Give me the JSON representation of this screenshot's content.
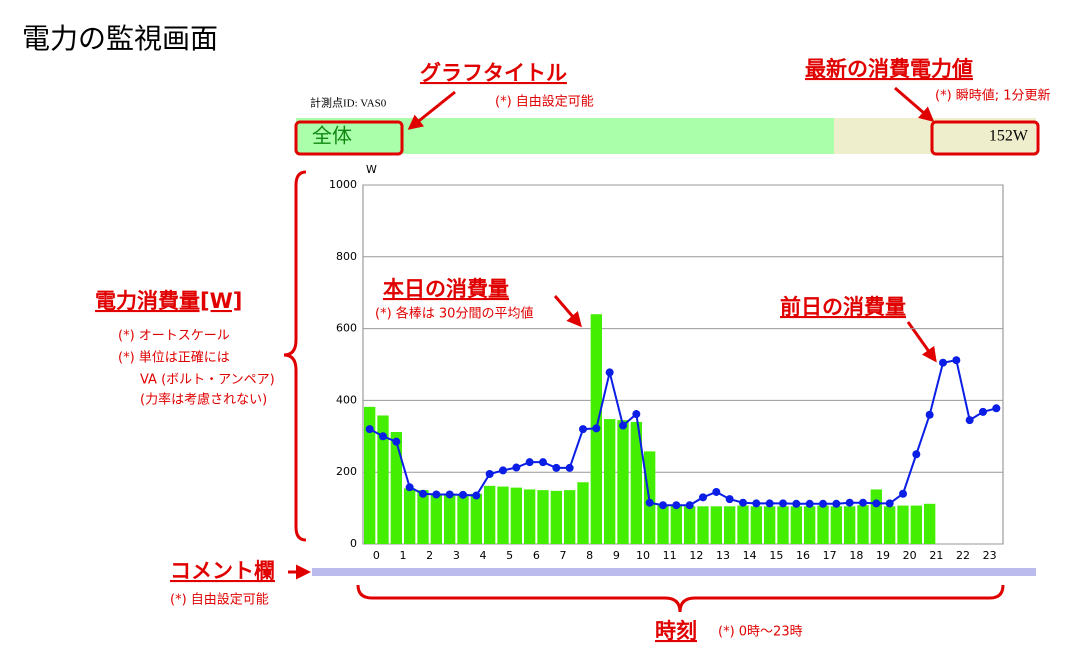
{
  "title": "電力の監視画面",
  "measure_id": "計測点ID: VAS0",
  "header": {
    "label": "全体",
    "value": "152W"
  },
  "annotations": {
    "graph_title": {
      "heading": "グラフタイトル",
      "note": "(*) 自由設定可能"
    },
    "latest": {
      "heading": "最新の消費電力値",
      "note": "(*) 瞬時値; 1分更新"
    },
    "consumption": {
      "heading": "電力消費量[W]",
      "notes": [
        "(*) オートスケール",
        "(*) 単位は正確には",
        "VA (ボルト・アンペア)",
        "(力率は考慮されない)"
      ]
    },
    "today": {
      "heading": "本日の消費量",
      "note": "(*) 各棒は 30分間の平均値"
    },
    "yesterday": {
      "heading": "前日の消費量"
    },
    "comment": {
      "heading": "コメント欄",
      "note": "(*) 自由設定可能"
    },
    "time": {
      "heading": "時刻",
      "note": "(*) 0時〜23時"
    }
  },
  "chart_data": {
    "type": "bar_line",
    "y_unit": "W",
    "categories": [
      "0",
      null,
      "1",
      null,
      "2",
      null,
      "3",
      null,
      "4",
      null,
      "5",
      null,
      "6",
      null,
      "7",
      null,
      "8",
      null,
      "9",
      null,
      "10",
      null,
      "11",
      null,
      "12",
      null,
      "13",
      null,
      "14",
      null,
      "15",
      null,
      "16",
      null,
      "17",
      null,
      "18",
      null,
      "19",
      null,
      "20",
      null,
      "21",
      null,
      "22",
      null,
      "23",
      null
    ],
    "series": [
      {
        "type": "bar",
        "color": "#44ee00",
        "values": [
          382,
          358,
          312,
          155,
          150,
          140,
          140,
          138,
          140,
          162,
          160,
          157,
          152,
          150,
          148,
          150,
          172,
          640,
          348,
          345,
          340,
          258,
          110,
          108,
          105,
          105,
          105,
          105,
          107,
          105,
          105,
          105,
          105,
          105,
          107,
          105,
          105,
          108,
          152,
          105,
          107,
          107,
          112,
          null,
          null,
          null,
          null,
          null
        ]
      },
      {
        "type": "line",
        "color": "#0a1ee6",
        "values": [
          320,
          300,
          285,
          158,
          140,
          138,
          138,
          137,
          135,
          195,
          205,
          213,
          228,
          228,
          212,
          212,
          320,
          322,
          478,
          330,
          362,
          115,
          108,
          108,
          108,
          130,
          145,
          125,
          115,
          113,
          113,
          113,
          112,
          112,
          112,
          112,
          115,
          115,
          113,
          113,
          140,
          250,
          360,
          505,
          512,
          345,
          368,
          378
        ]
      }
    ],
    "ylim": [
      0,
      1000
    ],
    "yticks": [
      0,
      200,
      400,
      600,
      800,
      1000
    ],
    "grid": true
  }
}
